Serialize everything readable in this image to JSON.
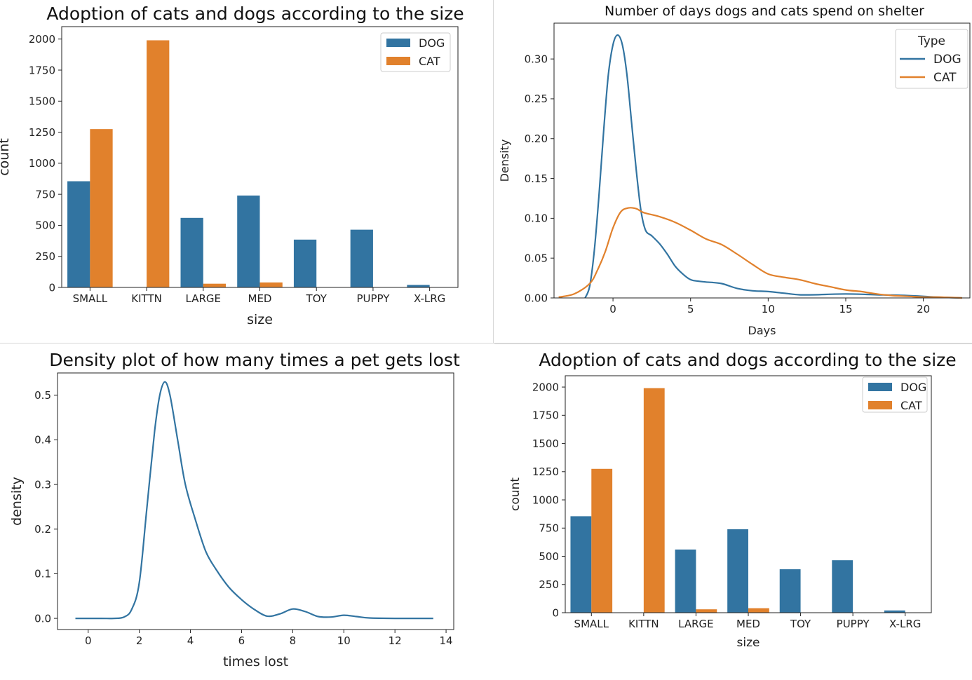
{
  "charts": [
    {
      "title": "Adoption of cats and dogs according to the size",
      "chart_data": {
        "type": "bar",
        "xlabel": "size",
        "ylabel": "count",
        "categories": [
          "SMALL",
          "KITTN",
          "LARGE",
          "MED",
          "TOY",
          "PUPPY",
          "X-LRG"
        ],
        "series": [
          {
            "name": "DOG",
            "color": "#3274a1",
            "values": [
              855,
              0,
              560,
              740,
              385,
              465,
              20
            ]
          },
          {
            "name": "CAT",
            "color": "#e1812c",
            "values": [
              1275,
              1990,
              30,
              40,
              0,
              0,
              0
            ]
          }
        ],
        "ylim": [
          0,
          2100
        ],
        "yticks": [
          0,
          250,
          500,
          750,
          1000,
          1250,
          1500,
          1750,
          2000
        ],
        "legend": "top-right",
        "grid": false
      }
    },
    {
      "title": "Number of days dogs and cats spend on shelter",
      "chart_data": {
        "type": "line",
        "xlabel": "Days",
        "ylabel": "Density",
        "xlim": [
          -3.8,
          23
        ],
        "ylim": [
          0,
          0.345
        ],
        "xticks": [
          0,
          5,
          10,
          15,
          20
        ],
        "yticks": [
          0.0,
          0.05,
          0.1,
          0.15,
          0.2,
          0.25,
          0.3
        ],
        "legend_title": "Type",
        "legend": "top-right",
        "grid": false,
        "series": [
          {
            "name": "DOG",
            "color": "#3274a1",
            "x": [
              -1.8,
              -1.5,
              -1.2,
              -0.9,
              -0.6,
              -0.3,
              0.0,
              0.3,
              0.6,
              0.9,
              1.2,
              1.5,
              1.8,
              2.1,
              2.5,
              3.0,
              3.5,
              4.0,
              4.5,
              5.0,
              5.5,
              6.0,
              7.0,
              8.0,
              9.0,
              10.0,
              11.0,
              12.0,
              13.0,
              15.0,
              17.0,
              19.0,
              21.0,
              22.5
            ],
            "y": [
              0.0,
              0.015,
              0.06,
              0.13,
              0.21,
              0.28,
              0.318,
              0.33,
              0.318,
              0.28,
              0.22,
              0.16,
              0.11,
              0.085,
              0.078,
              0.068,
              0.055,
              0.04,
              0.03,
              0.023,
              0.021,
              0.02,
              0.018,
              0.012,
              0.009,
              0.008,
              0.006,
              0.004,
              0.004,
              0.005,
              0.004,
              0.003,
              0.001,
              0.0
            ]
          },
          {
            "name": "CAT",
            "color": "#e1812c",
            "x": [
              -3.5,
              -2.5,
              -1.5,
              -1.0,
              -0.5,
              0.0,
              0.5,
              1.0,
              1.5,
              2.0,
              3.0,
              4.0,
              5.0,
              6.0,
              7.0,
              8.0,
              9.0,
              10.0,
              11.0,
              12.0,
              13.0,
              14.0,
              15.0,
              16.0,
              17.0,
              18.0,
              19.0,
              20.0,
              21.0,
              22.5
            ],
            "y": [
              0.001,
              0.005,
              0.018,
              0.035,
              0.058,
              0.088,
              0.108,
              0.113,
              0.112,
              0.107,
              0.102,
              0.095,
              0.085,
              0.074,
              0.067,
              0.055,
              0.042,
              0.03,
              0.026,
              0.023,
              0.018,
              0.014,
              0.01,
              0.008,
              0.005,
              0.003,
              0.002,
              0.001,
              0.001,
              0.0
            ]
          }
        ]
      }
    },
    {
      "title": "Density plot of how many times a pet gets lost",
      "chart_data": {
        "type": "line",
        "xlabel": "times lost",
        "ylabel": "density",
        "xlim": [
          -1.2,
          14.3
        ],
        "ylim": [
          -0.025,
          0.55
        ],
        "xticks": [
          0,
          2,
          4,
          6,
          8,
          10,
          12,
          14
        ],
        "yticks": [
          0.0,
          0.1,
          0.2,
          0.3,
          0.4,
          0.5
        ],
        "grid": false,
        "series": [
          {
            "name": "",
            "color": "#3274a1",
            "x": [
              -0.5,
              0.5,
              1.0,
              1.4,
              1.7,
              2.0,
              2.3,
              2.6,
              2.8,
              3.0,
              3.2,
              3.5,
              3.8,
              4.2,
              4.6,
              5.0,
              5.5,
              6.0,
              6.5,
              7.0,
              7.5,
              8.0,
              8.5,
              9.0,
              9.5,
              10.0,
              10.5,
              11.0,
              12.0,
              13.5
            ],
            "y": [
              0.0,
              0.0,
              0.0,
              0.003,
              0.02,
              0.08,
              0.25,
              0.42,
              0.5,
              0.53,
              0.5,
              0.4,
              0.3,
              0.22,
              0.15,
              0.11,
              0.07,
              0.042,
              0.02,
              0.005,
              0.01,
              0.021,
              0.015,
              0.004,
              0.003,
              0.007,
              0.004,
              0.001,
              0.0,
              0.0
            ]
          }
        ]
      }
    },
    {
      "title": "Adoption of cats and dogs according to the size",
      "chart_data": {
        "type": "bar",
        "xlabel": "size",
        "ylabel": "count",
        "categories": [
          "SMALL",
          "KITTN",
          "LARGE",
          "MED",
          "TOY",
          "PUPPY",
          "X-LRG"
        ],
        "series": [
          {
            "name": "DOG",
            "color": "#3274a1",
            "values": [
              855,
              0,
              560,
              740,
              385,
              465,
              20
            ]
          },
          {
            "name": "CAT",
            "color": "#e1812c",
            "values": [
              1275,
              1990,
              30,
              40,
              0,
              0,
              0
            ]
          }
        ],
        "ylim": [
          0,
          2100
        ],
        "yticks": [
          0,
          250,
          500,
          750,
          1000,
          1250,
          1500,
          1750,
          2000
        ],
        "legend": "top-right",
        "grid": false
      }
    }
  ]
}
